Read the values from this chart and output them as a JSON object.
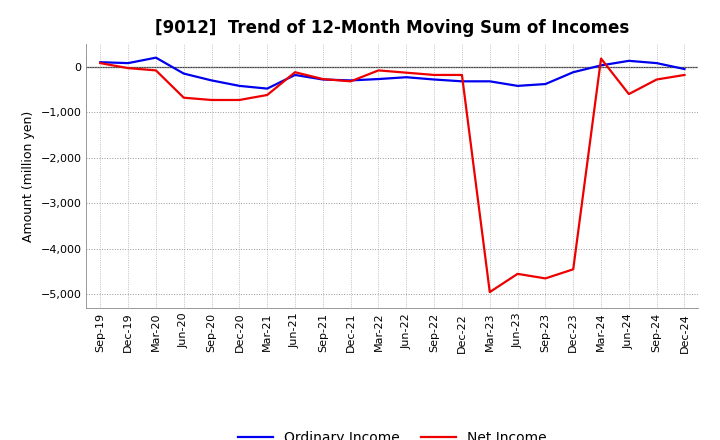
{
  "title": "[9012]  Trend of 12-Month Moving Sum of Incomes",
  "ylabel": "Amount (million yen)",
  "ylim": [
    -5300,
    500
  ],
  "yticks": [
    0,
    -1000,
    -2000,
    -3000,
    -4000,
    -5000
  ],
  "x_labels": [
    "Sep-19",
    "Dec-19",
    "Mar-20",
    "Jun-20",
    "Sep-20",
    "Dec-20",
    "Mar-21",
    "Jun-21",
    "Sep-21",
    "Dec-21",
    "Mar-22",
    "Jun-22",
    "Sep-22",
    "Dec-22",
    "Mar-23",
    "Jun-23",
    "Sep-23",
    "Dec-23",
    "Mar-24",
    "Jun-24",
    "Sep-24",
    "Dec-24"
  ],
  "ordinary_income": [
    100,
    80,
    200,
    -150,
    -300,
    -420,
    -480,
    -180,
    -280,
    -300,
    -270,
    -230,
    -280,
    -320,
    -320,
    -420,
    -380,
    -120,
    30,
    130,
    80,
    -50
  ],
  "net_income": [
    80,
    -30,
    -80,
    -680,
    -730,
    -730,
    -620,
    -120,
    -270,
    -320,
    -80,
    -130,
    -180,
    -180,
    -4950,
    -4550,
    -4650,
    -4450,
    180,
    -600,
    -280,
    -180
  ],
  "ordinary_income_color": "#0000ee",
  "net_income_color": "#ee0000",
  "line_width": 1.6,
  "bg_color": "#ffffff",
  "grid_color": "#999999",
  "title_fontsize": 12,
  "legend_fontsize": 10,
  "ylabel_fontsize": 9,
  "tick_fontsize": 8
}
